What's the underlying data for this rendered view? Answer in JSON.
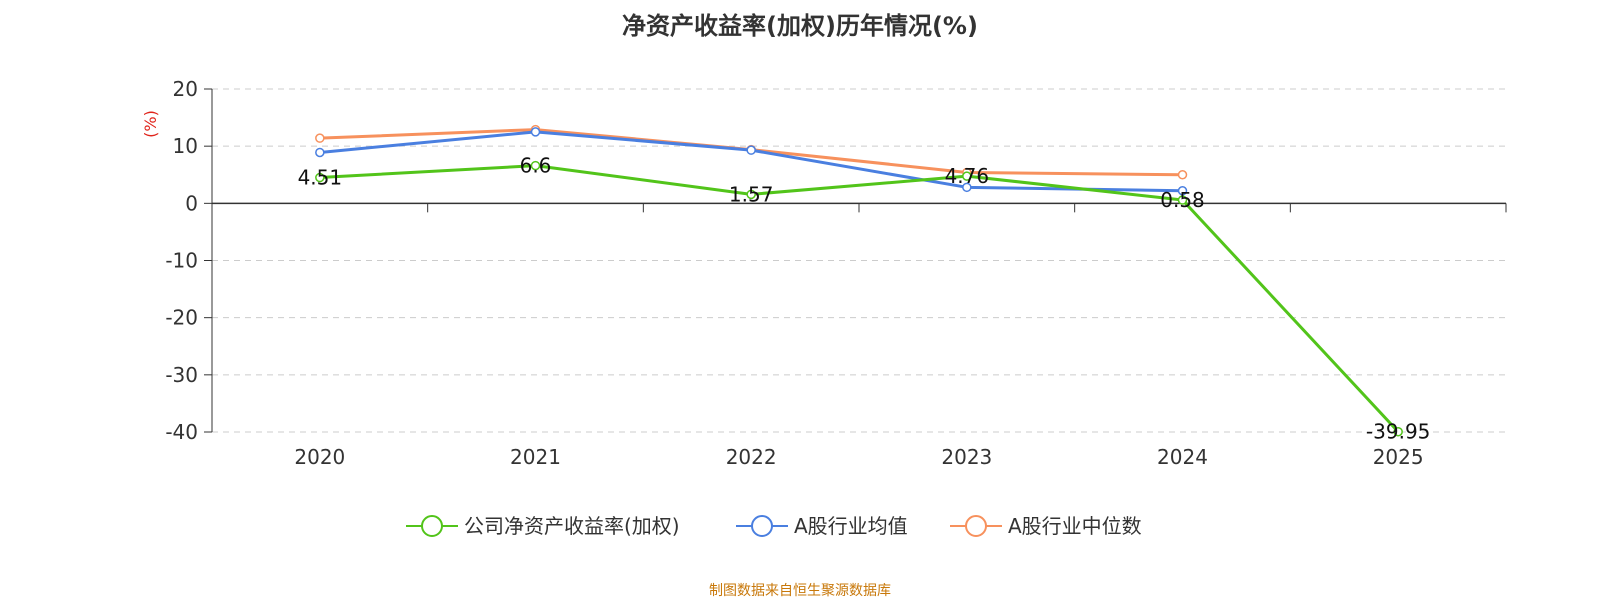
{
  "title": "净资产收益率(加权)历年情况(%)",
  "source": "制图数据来自恒生聚源数据库",
  "colors": {
    "company": "#52c41a",
    "industry_avg": "#4a7fe0",
    "industry_median": "#f7915d",
    "ylabel": "#e0241b",
    "source": "#c8780a"
  },
  "chart_data": {
    "type": "line",
    "title": "净资产收益率(加权)历年情况(%)",
    "xlabel": "",
    "ylabel": "(%)",
    "ylim": [
      -40,
      20
    ],
    "yticks": [
      20,
      10,
      0,
      -10,
      -20,
      -30,
      -40
    ],
    "grid": true,
    "legend_position": "bottom",
    "categories": [
      "2020",
      "2021",
      "2022",
      "2023",
      "2024",
      "2025"
    ],
    "series": [
      {
        "name": "公司净资产收益率(加权)",
        "color": "#52c41a",
        "values": [
          4.51,
          6.6,
          1.57,
          4.76,
          0.58,
          -39.95
        ],
        "labels": [
          "4.51",
          "6.6",
          "1.57",
          "4.76",
          "0.58",
          "-39.95"
        ]
      },
      {
        "name": "A股行业均值",
        "color": "#4a7fe0",
        "values": [
          8.9,
          12.5,
          9.3,
          2.8,
          2.2,
          null
        ]
      },
      {
        "name": "A股行业中位数",
        "color": "#f7915d",
        "values": [
          11.4,
          12.9,
          9.4,
          5.4,
          5.0,
          null
        ]
      }
    ]
  }
}
